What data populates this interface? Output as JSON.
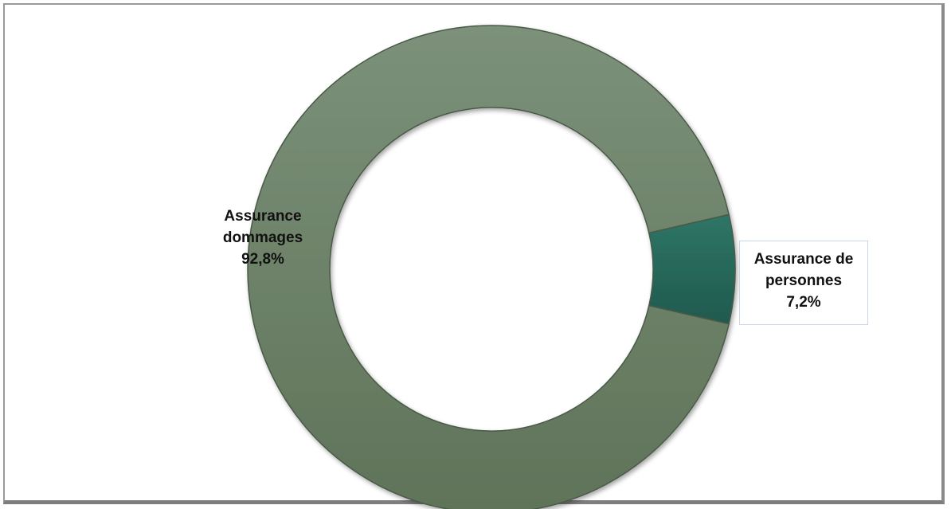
{
  "chart_data": {
    "type": "pie",
    "variant": "donut",
    "categories": [
      "Assurance dommages",
      "Assurance de personnes"
    ],
    "values": [
      92.8,
      7.2
    ],
    "unit": "%",
    "colors": [
      "#6b8066",
      "#27665a"
    ],
    "data_labels": [
      {
        "line1": "Assurance",
        "line2": "dommages",
        "value": "92,8%"
      },
      {
        "line1": "Assurance de",
        "line2": "personnes",
        "value": "7,2%"
      }
    ],
    "title": "",
    "legend": "none"
  }
}
